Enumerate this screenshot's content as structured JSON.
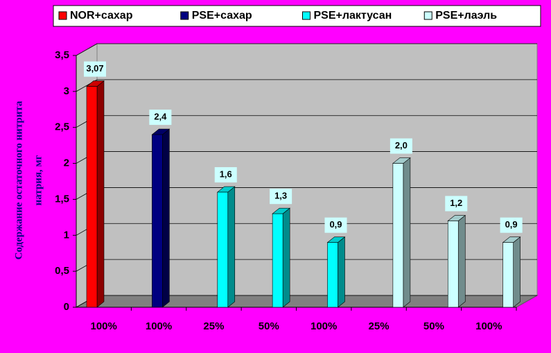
{
  "chart_data": {
    "type": "bar",
    "categories": [
      "100%",
      "100%",
      "25%",
      "50%",
      "100%",
      "25%",
      "50%",
      "100%"
    ],
    "series": [
      {
        "name": "NOR+сахар",
        "color": "#ff0000",
        "values": [
          3.07,
          null,
          null,
          null,
          null,
          null,
          null,
          null
        ],
        "value_labels": [
          "3,07",
          null,
          null,
          null,
          null,
          null,
          null,
          null
        ]
      },
      {
        "name": "PSE+сахар",
        "color": "#000080",
        "values": [
          null,
          2.4,
          null,
          null,
          null,
          null,
          null,
          null
        ],
        "value_labels": [
          null,
          "2,4",
          null,
          null,
          null,
          null,
          null,
          null
        ]
      },
      {
        "name": "PSE+лактусан",
        "color": "#00ffff",
        "values": [
          null,
          null,
          1.6,
          1.3,
          0.9,
          null,
          null,
          null
        ],
        "value_labels": [
          null,
          null,
          "1,6",
          "1,3",
          "0,9",
          null,
          null,
          null
        ]
      },
      {
        "name": "PSE+лаэль",
        "color": "#ccffff",
        "values": [
          null,
          null,
          null,
          null,
          null,
          2.0,
          1.2,
          0.9
        ],
        "value_labels": [
          null,
          null,
          null,
          null,
          null,
          "2,0",
          "1,2",
          "0,9"
        ]
      }
    ],
    "ylabel": [
      "Содержание  остаточного  нитрита",
      "натрия, мг"
    ],
    "ylim": [
      0,
      3.5
    ],
    "yticks": [
      0,
      {
        "value": 0.5,
        "label": "0,5"
      },
      1,
      {
        "value": 1.5,
        "label": "1,5"
      },
      2,
      {
        "value": 2.5,
        "label": "2,5"
      },
      3,
      {
        "value": 3.5,
        "label": "3,5"
      }
    ],
    "grid": true,
    "legend": "top"
  }
}
